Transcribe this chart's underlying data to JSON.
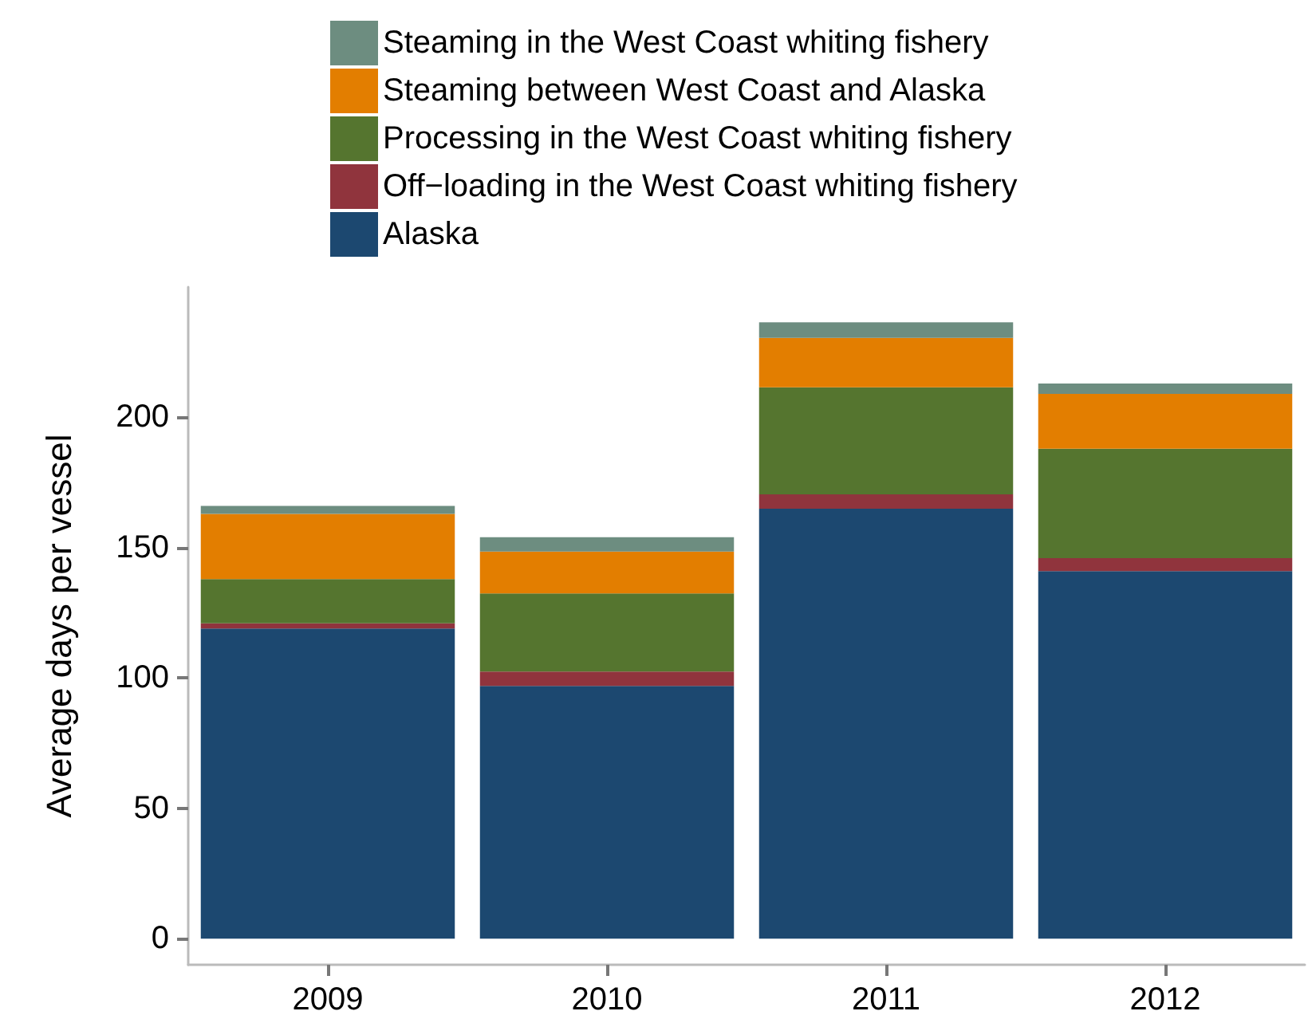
{
  "chart_data": {
    "type": "bar",
    "stacked": true,
    "ylabel": "Average days per vessel",
    "categories": [
      "2009",
      "2010",
      "2011",
      "2012"
    ],
    "series": [
      {
        "name": "Alaska",
        "color": "#1c4870",
        "values": [
          119,
          97,
          165,
          141
        ]
      },
      {
        "name": "Off−loading in the West Coast whiting fishery",
        "color": "#90343d",
        "values": [
          2,
          5.5,
          5.5,
          5
        ]
      },
      {
        "name": "Processing in the West Coast whiting fishery",
        "color": "#55752f",
        "values": [
          17,
          30,
          41,
          42
        ]
      },
      {
        "name": "Steaming between West Coast and Alaska",
        "color": "#e37e00",
        "values": [
          25,
          16,
          19,
          21
        ]
      },
      {
        "name": "Steaming in the West Coast whiting fishery",
        "color": "#6d8d80",
        "values": [
          3,
          5.5,
          6,
          4
        ]
      }
    ],
    "ylim": [
      -10,
      250
    ],
    "yticks": [
      0,
      50,
      100,
      150,
      200
    ],
    "grid": false,
    "legend": "top"
  }
}
